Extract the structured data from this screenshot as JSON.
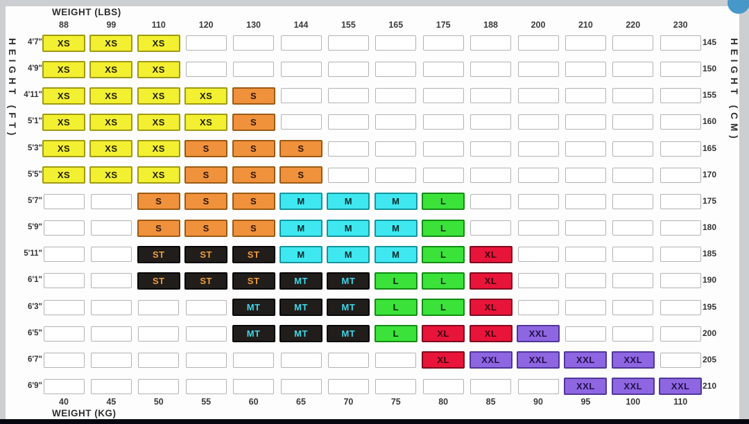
{
  "chart": {
    "title_top": "WEIGHT (LBS)",
    "title_bottom": "WEIGHT (KG)",
    "axis_left": "HEIGHT (FT)",
    "axis_right": "HEIGHT (CM)"
  },
  "chart_data": {
    "type": "heatmap",
    "x_top_axis": {
      "label": "WEIGHT (LBS)",
      "ticks": [
        88,
        99,
        110,
        120,
        130,
        144,
        155,
        165,
        175,
        188,
        200,
        210,
        220,
        230
      ]
    },
    "x_bottom_axis": {
      "label": "WEIGHT (KG)",
      "ticks": [
        40,
        45,
        50,
        55,
        60,
        65,
        70,
        75,
        80,
        85,
        90,
        95,
        100,
        110
      ]
    },
    "y_left_axis": {
      "label": "HEIGHT (FT)",
      "ticks": [
        "4'7\"",
        "4'9\"",
        "4'11\"",
        "5'1\"",
        "5'3\"",
        "5'5\"",
        "5'7\"",
        "5'9\"",
        "5'11\"",
        "6'1\"",
        "6'3\"",
        "6'5\"",
        "6'7\"",
        "6'9\""
      ]
    },
    "y_right_axis": {
      "label": "HEIGHT (CM)",
      "ticks": [
        145,
        150,
        155,
        160,
        165,
        170,
        175,
        180,
        185,
        190,
        195,
        200,
        205,
        210
      ]
    },
    "grid": "on",
    "cells": [
      [
        "XS",
        "XS",
        "XS",
        "",
        "",
        "",
        "",
        "",
        "",
        "",
        "",
        "",
        "",
        ""
      ],
      [
        "XS",
        "XS",
        "XS",
        "",
        "",
        "",
        "",
        "",
        "",
        "",
        "",
        "",
        "",
        ""
      ],
      [
        "XS",
        "XS",
        "XS",
        "XS",
        "S",
        "",
        "",
        "",
        "",
        "",
        "",
        "",
        "",
        ""
      ],
      [
        "XS",
        "XS",
        "XS",
        "XS",
        "S",
        "",
        "",
        "",
        "",
        "",
        "",
        "",
        "",
        ""
      ],
      [
        "XS",
        "XS",
        "XS",
        "S",
        "S",
        "S",
        "",
        "",
        "",
        "",
        "",
        "",
        "",
        ""
      ],
      [
        "XS",
        "XS",
        "XS",
        "S",
        "S",
        "S",
        "",
        "",
        "",
        "",
        "",
        "",
        "",
        ""
      ],
      [
        "",
        "",
        "S",
        "S",
        "S",
        "M",
        "M",
        "M",
        "L",
        "",
        "",
        "",
        "",
        ""
      ],
      [
        "",
        "",
        "S",
        "S",
        "S",
        "M",
        "M",
        "M",
        "L",
        "",
        "",
        "",
        "",
        ""
      ],
      [
        "",
        "",
        "ST",
        "ST",
        "ST",
        "M",
        "M",
        "M",
        "L",
        "XL",
        "",
        "",
        "",
        ""
      ],
      [
        "",
        "",
        "ST",
        "ST",
        "ST",
        "MT",
        "MT",
        "L",
        "L",
        "XL",
        "",
        "",
        "",
        ""
      ],
      [
        "",
        "",
        "",
        "",
        "MT",
        "MT",
        "MT",
        "L",
        "L",
        "XL",
        "",
        "",
        "",
        ""
      ],
      [
        "",
        "",
        "",
        "",
        "MT",
        "MT",
        "MT",
        "L",
        "XL",
        "XL",
        "XXL",
        "",
        "",
        ""
      ],
      [
        "",
        "",
        "",
        "",
        "",
        "",
        "",
        "",
        "XL",
        "XXL",
        "XXL",
        "XXL",
        "XXL",
        ""
      ],
      [
        "",
        "",
        "",
        "",
        "",
        "",
        "",
        "",
        "",
        "",
        "",
        "XXL",
        "XXL",
        "XXL"
      ]
    ],
    "size_styles": {
      "XS": {
        "bg": "#f3ef31",
        "border": "#9d9a12",
        "text": "#1d1d05"
      },
      "S": {
        "bg": "#f0913c",
        "border": "#9a5a12",
        "text": "#2a1503"
      },
      "ST": {
        "bg": "#211d1b",
        "border": "#060504",
        "text": "#ef9d3e"
      },
      "M": {
        "bg": "#3fe8f0",
        "border": "#13949c",
        "text": "#06272a"
      },
      "MT": {
        "bg": "#211d1b",
        "border": "#060504",
        "text": "#3fd6e8"
      },
      "L": {
        "bg": "#3be23a",
        "border": "#128c12",
        "text": "#07270a"
      },
      "XL": {
        "bg": "#e9143a",
        "border": "#7c0a1e",
        "text": "#37030e"
      },
      "XXL": {
        "bg": "#8e66e2",
        "border": "#4f3696",
        "text": "#221048"
      }
    }
  },
  "decorations": {
    "page_bg": "#cbcfd2",
    "panel_bg": "#fdfdfe",
    "bottom_bar_color": "#07070f",
    "floating_button_color": "#4798c8",
    "empty_cell_border": "#b2b2b2"
  }
}
